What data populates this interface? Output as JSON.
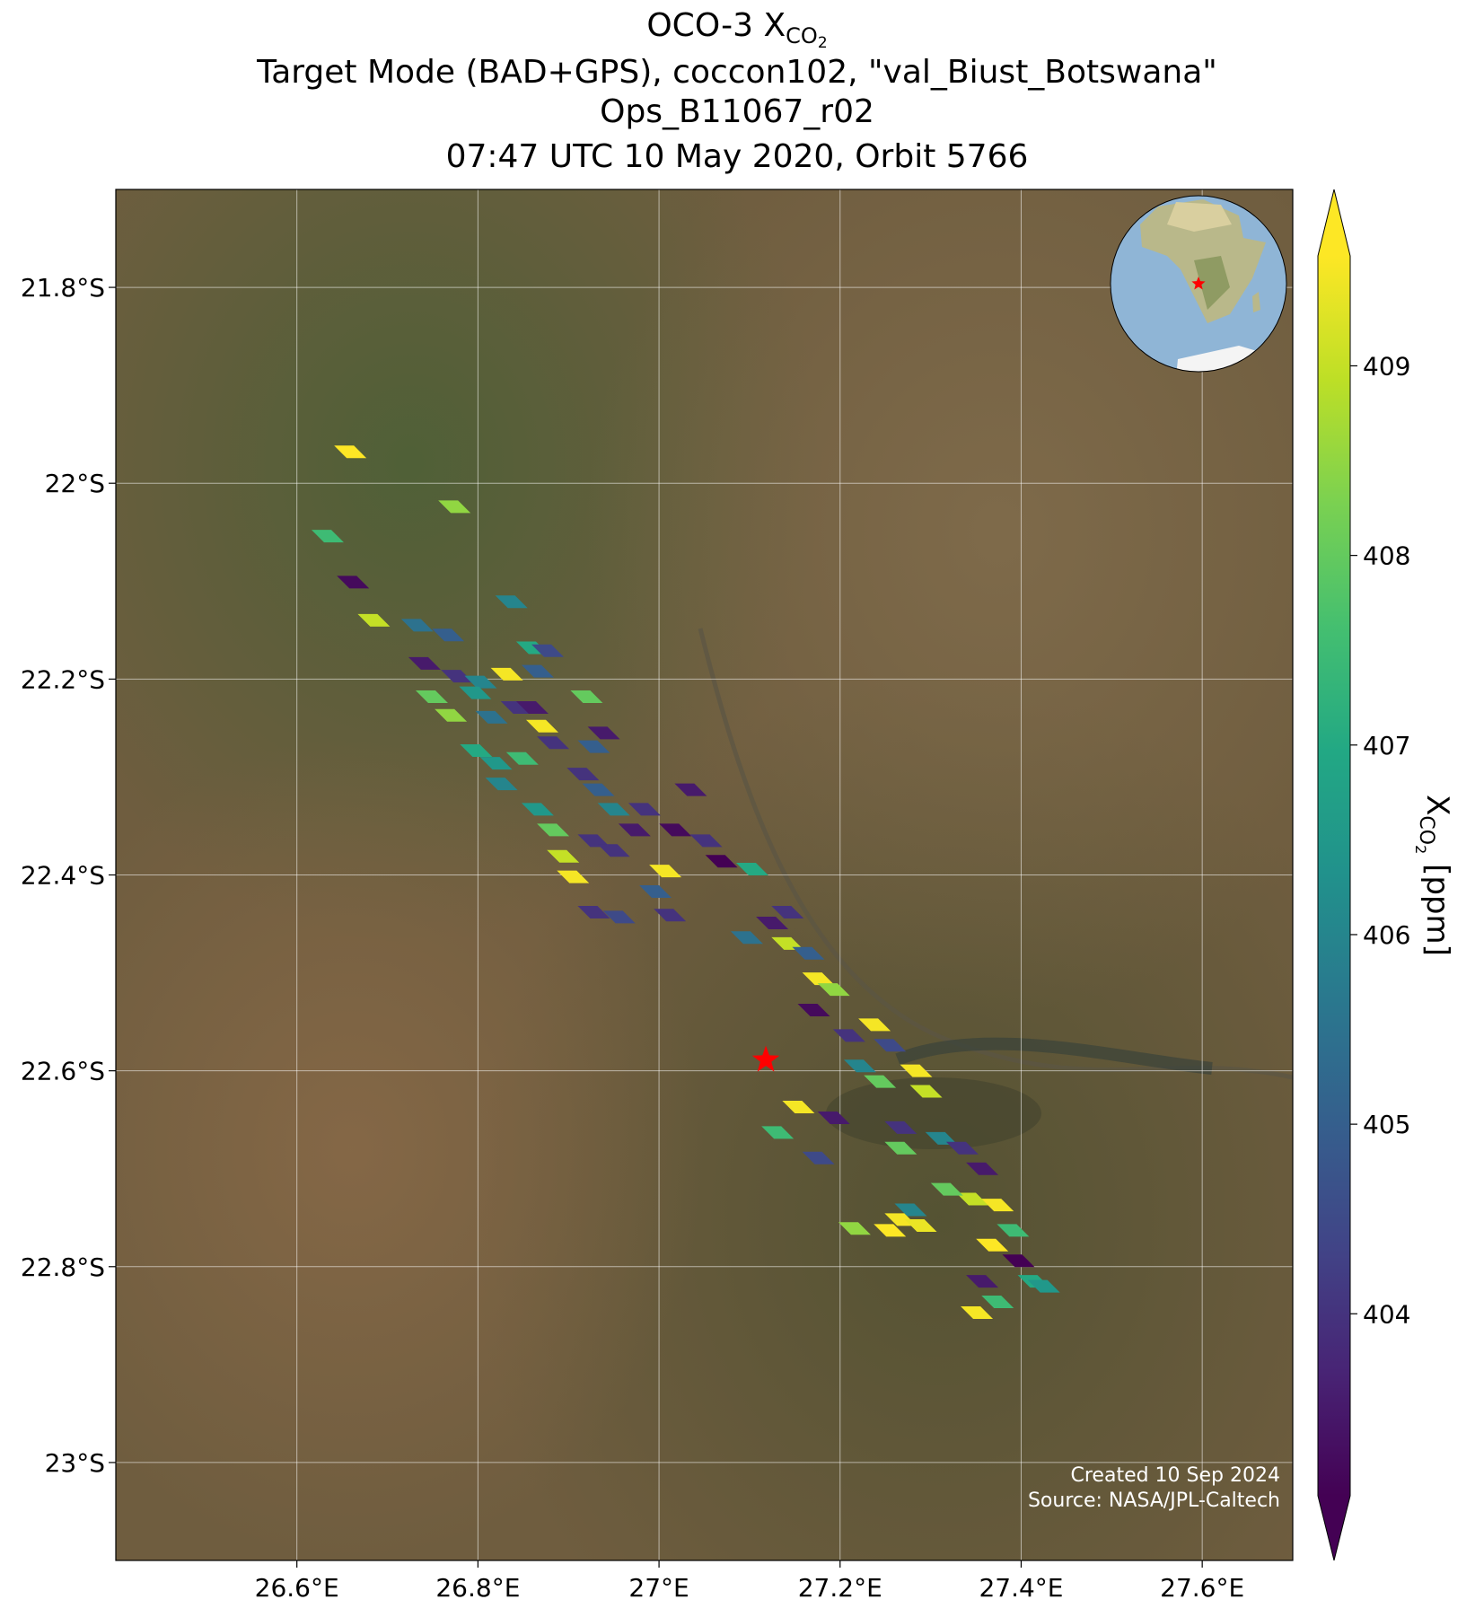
{
  "chart_data": {
    "type": "map",
    "title_parts": [
      "OCO-3 X",
      "CO",
      "2"
    ],
    "title_lines": [
      "Target Mode (BAD+GPS), coccon102, \"val_Biust_Botswana\"",
      "Ops_B11067_r02",
      "07:47 UTC 10 May 2020, Orbit 5766"
    ],
    "xlim": [
      26.4,
      27.7
    ],
    "ylim": [
      -21.7,
      -23.1
    ],
    "xticks": [
      {
        "value": 26.6,
        "label": "26.6°E"
      },
      {
        "value": 26.8,
        "label": "26.8°E"
      },
      {
        "value": 27.0,
        "label": "27°E"
      },
      {
        "value": 27.2,
        "label": "27.2°E"
      },
      {
        "value": 27.4,
        "label": "27.4°E"
      },
      {
        "value": 27.6,
        "label": "27.6°E"
      }
    ],
    "yticks": [
      {
        "value": -21.8,
        "label": "21.8°S"
      },
      {
        "value": -22.0,
        "label": "22°S"
      },
      {
        "value": -22.2,
        "label": "22.2°S"
      },
      {
        "value": -22.4,
        "label": "22.4°S"
      },
      {
        "value": -22.6,
        "label": "22.6°S"
      },
      {
        "value": -22.8,
        "label": "22.8°S"
      },
      {
        "value": -23.0,
        "label": "23°S"
      }
    ],
    "grid": true,
    "colormap": "viridis",
    "clim": [
      403.04,
      409.58
    ],
    "colorbar_ticks": [
      404,
      405,
      406,
      407,
      408,
      409
    ],
    "colorbar_label_parts": [
      "X",
      "CO",
      "2",
      " [ppm]"
    ],
    "annotations": [
      "Created 10 Sep 2024",
      "Source: NASA/JPL-Caltech"
    ],
    "target": {
      "lon": 27.118,
      "lat": -22.589,
      "color": "#ff0000"
    },
    "soundings": {
      "lon": [
        26.659,
        26.774,
        26.634,
        26.662,
        26.685,
        26.733,
        26.767,
        26.837,
        26.86,
        26.877,
        26.741,
        26.777,
        26.803,
        26.832,
        26.866,
        26.92,
        26.749,
        26.77,
        26.797,
        26.815,
        26.843,
        26.86,
        26.871,
        26.883,
        26.939,
        26.928,
        26.798,
        26.82,
        26.826,
        26.849,
        26.916,
        26.933,
        26.95,
        26.866,
        26.883,
        26.894,
        26.905,
        26.928,
        26.95,
        26.973,
        26.984,
        27.018,
        27.007,
        26.996,
        27.035,
        27.052,
        27.069,
        27.103,
        26.928,
        26.956,
        27.012,
        27.097,
        27.125,
        27.142,
        27.142,
        27.165,
        27.176,
        27.193,
        27.171,
        27.21,
        27.238,
        27.255,
        27.222,
        27.244,
        27.284,
        27.295,
        27.154,
        27.193,
        27.131,
        27.176,
        27.267,
        27.267,
        27.312,
        27.335,
        27.357,
        27.346,
        27.374,
        27.318,
        27.278,
        27.267,
        27.289,
        27.368,
        27.391,
        27.357,
        27.397,
        27.414,
        27.425,
        27.351,
        27.374,
        27.216,
        27.255
      ],
      "lat": [
        -21.968,
        -22.024,
        -22.054,
        -22.101,
        -22.14,
        -22.145,
        -22.155,
        -22.121,
        -22.168,
        -22.171,
        -22.184,
        -22.197,
        -22.203,
        -22.195,
        -22.192,
        -22.218,
        -22.218,
        -22.237,
        -22.214,
        -22.239,
        -22.229,
        -22.229,
        -22.248,
        -22.265,
        -22.255,
        -22.269,
        -22.273,
        -22.286,
        -22.307,
        -22.281,
        -22.297,
        -22.313,
        -22.333,
        -22.333,
        -22.354,
        -22.381,
        -22.402,
        -22.365,
        -22.375,
        -22.354,
        -22.333,
        -22.354,
        -22.396,
        -22.417,
        -22.313,
        -22.365,
        -22.386,
        -22.394,
        -22.438,
        -22.443,
        -22.441,
        -22.464,
        -22.449,
        -22.438,
        -22.47,
        -22.48,
        -22.506,
        -22.517,
        -22.538,
        -22.564,
        -22.553,
        -22.574,
        -22.595,
        -22.611,
        -22.6,
        -22.621,
        -22.637,
        -22.648,
        -22.663,
        -22.689,
        -22.658,
        -22.679,
        -22.669,
        -22.679,
        -22.7,
        -22.731,
        -22.737,
        -22.721,
        -22.742,
        -22.752,
        -22.758,
        -22.778,
        -22.763,
        -22.815,
        -22.794,
        -22.815,
        -22.82,
        -22.847,
        -22.836,
        -22.761,
        -22.763
      ],
      "xco2": [
        409.6,
        408.5,
        407.5,
        403.2,
        409.0,
        405.5,
        405.0,
        406.0,
        407.0,
        404.5,
        403.5,
        404.0,
        406.0,
        409.5,
        405.0,
        408.0,
        408.0,
        408.5,
        406.5,
        405.5,
        404.0,
        403.5,
        409.5,
        404.0,
        403.5,
        405.0,
        407.0,
        406.5,
        406.0,
        407.5,
        404.0,
        405.0,
        406.0,
        406.5,
        408.0,
        409.0,
        409.5,
        404.0,
        404.0,
        403.5,
        404.0,
        403.2,
        409.5,
        405.0,
        403.5,
        404.0,
        403.0,
        407.0,
        404.0,
        404.5,
        404.0,
        405.5,
        403.5,
        404.0,
        409.0,
        405.0,
        409.5,
        408.5,
        403.2,
        404.0,
        409.5,
        404.5,
        406.0,
        408.0,
        409.5,
        409.0,
        409.5,
        403.5,
        407.5,
        404.5,
        404.0,
        408.0,
        406.0,
        404.0,
        403.5,
        409.0,
        409.5,
        408.0,
        406.0,
        409.5,
        409.4,
        409.6,
        407.5,
        403.5,
        403.0,
        407.0,
        406.5,
        409.5,
        407.5,
        408.5,
        409.6
      ]
    }
  }
}
